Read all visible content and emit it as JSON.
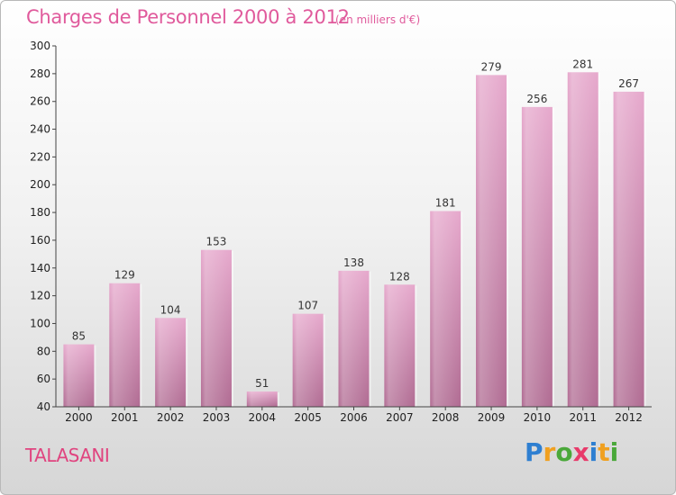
{
  "header": {
    "title": "Charges de Personnel 2000 à 2012",
    "subtitle": "(en milliers d'€)"
  },
  "footer": {
    "commune": "TALASANI",
    "logo": {
      "letters": [
        "P",
        "r",
        "o",
        "x",
        "i",
        "t",
        "i"
      ],
      "colors": [
        "#2e7fd1",
        "#f0a020",
        "#4aa83a",
        "#e83a6a",
        "#2e7fd1",
        "#f0a020",
        "#4aa83a"
      ]
    }
  },
  "chart_data": {
    "type": "bar",
    "title": "Charges de Personnel 2000 à 2012",
    "categories": [
      "2000",
      "2001",
      "2002",
      "2003",
      "2004",
      "2005",
      "2006",
      "2007",
      "2008",
      "2009",
      "2010",
      "2011",
      "2012"
    ],
    "values": [
      85,
      129,
      104,
      153,
      51,
      107,
      138,
      128,
      181,
      279,
      256,
      281,
      267
    ],
    "ylim": [
      40,
      300
    ],
    "yticks": [
      40,
      60,
      80,
      100,
      120,
      140,
      160,
      180,
      200,
      220,
      240,
      260,
      280,
      300
    ],
    "grid": false,
    "colors": {
      "bar_top": "#e6a8cc",
      "bar_bottom": "#b06b92",
      "axis": "#444444"
    }
  }
}
